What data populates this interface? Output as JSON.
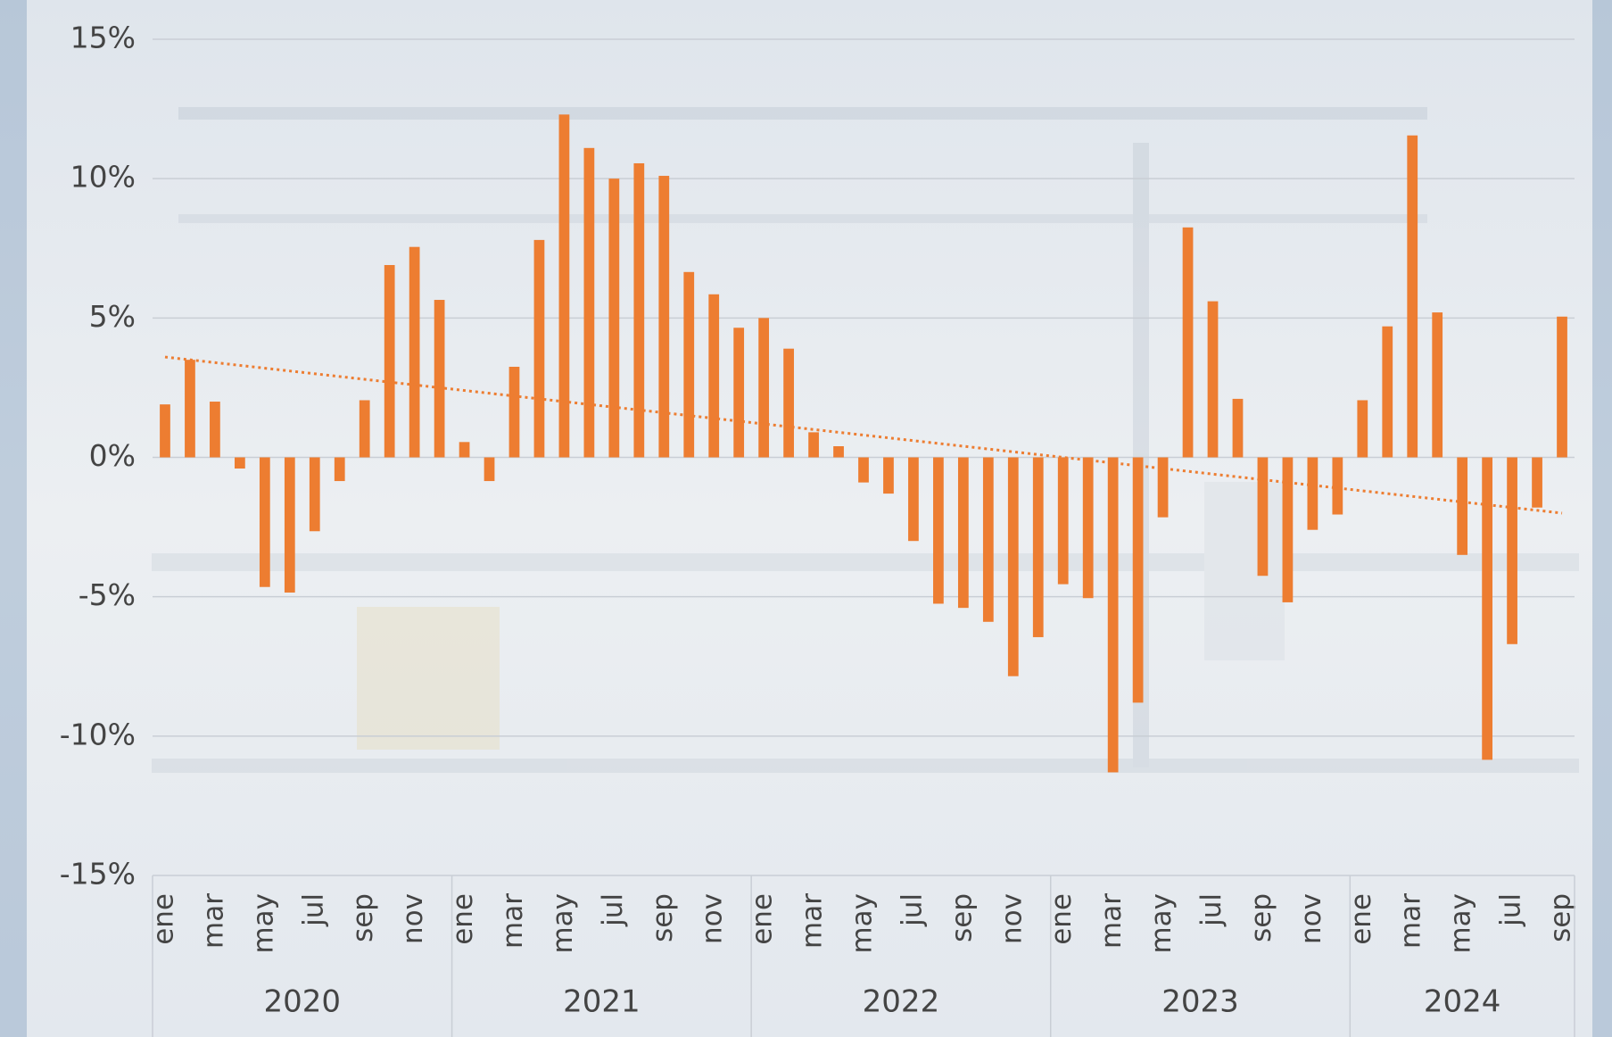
{
  "chart_data": {
    "type": "bar",
    "categories": [
      "ene",
      null,
      "mar",
      null,
      "may",
      null,
      "jul",
      null,
      "sep",
      null,
      "nov",
      null,
      "ene",
      null,
      "mar",
      null,
      "may",
      null,
      "jul",
      null,
      "sep",
      null,
      "nov",
      null,
      "ene",
      null,
      "mar",
      null,
      "may",
      null,
      "jul",
      null,
      "sep",
      null,
      "nov",
      null,
      "ene",
      null,
      "mar",
      null,
      "may",
      null,
      "jul",
      null,
      "sep",
      null,
      "nov",
      null,
      "ene",
      null,
      "mar",
      null,
      "may",
      null,
      "jul",
      null,
      "sep"
    ],
    "years": [
      "2020",
      "2021",
      "2022",
      "2023",
      "2024"
    ],
    "values": [
      1.9,
      3.5,
      2.0,
      -0.4,
      -4.65,
      -4.85,
      -2.65,
      -0.85,
      2.05,
      6.9,
      7.55,
      5.65,
      0.55,
      -0.85,
      3.25,
      7.8,
      12.3,
      11.1,
      10.0,
      10.55,
      10.1,
      6.65,
      5.85,
      4.65,
      5.0,
      3.9,
      0.9,
      0.4,
      -0.9,
      -1.3,
      -3.0,
      -5.25,
      -5.4,
      -5.9,
      -7.85,
      -6.45,
      -4.55,
      -5.05,
      -11.3,
      -8.8,
      -2.15,
      8.25,
      5.6,
      2.1,
      -4.25,
      -5.2,
      -2.6,
      -2.05,
      2.05,
      4.7,
      11.55,
      5.2,
      -3.5,
      -10.85,
      -6.7,
      -1.8,
      5.05
    ],
    "color": "#ed7d31",
    "trendline": [
      3.6,
      -2.0
    ],
    "ylim": [
      -15,
      15
    ],
    "yticks": [
      {
        "value": -15,
        "label": "-15%"
      },
      {
        "value": -10,
        "label": "-10%"
      },
      {
        "value": -5,
        "label": "-5%"
      },
      {
        "value": 0,
        "label": "0%"
      },
      {
        "value": 5,
        "label": "5%"
      },
      {
        "value": 10,
        "label": "10%"
      },
      {
        "value": 15,
        "label": "15%"
      }
    ],
    "grid": true
  }
}
